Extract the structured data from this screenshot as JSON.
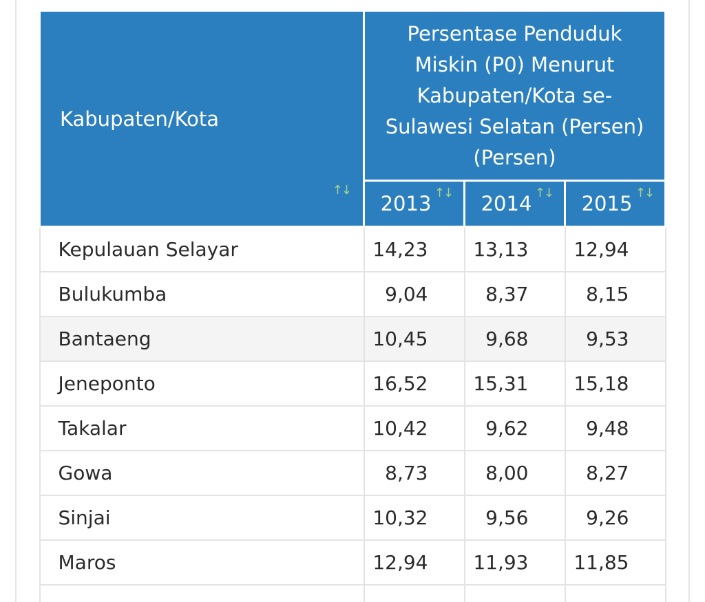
{
  "table": {
    "city_header": "Kabupaten/Kota",
    "group_header": "Persentase Penduduk Miskin (P0) Menurut Kabupaten/Kota se-Sulawesi Selatan (Persen) (Persen)",
    "group_header_lines": [
      "Persentase Penduduk",
      "Miskin (P0) Menurut",
      "Kabupaten/Kota se-",
      "Sulawesi Selatan (Persen)",
      "(Persen)"
    ],
    "sort_icon": "↑↓",
    "years": [
      "2013",
      "2014",
      "2015"
    ],
    "rows": [
      {
        "city": "Kepulauan Selayar",
        "v2013": "14,23",
        "v2014": "13,13",
        "v2015": "12,94"
      },
      {
        "city": "Bulukumba",
        "v2013": "9,04",
        "v2014": "8,37",
        "v2015": "8,15"
      },
      {
        "city": "Bantaeng",
        "v2013": "10,45",
        "v2014": "9,68",
        "v2015": "9,53"
      },
      {
        "city": "Jeneponto",
        "v2013": "16,52",
        "v2014": "15,31",
        "v2015": "15,18"
      },
      {
        "city": "Takalar",
        "v2013": "10,42",
        "v2014": "9,62",
        "v2015": "9,48"
      },
      {
        "city": "Gowa",
        "v2013": "8,73",
        "v2014": "8,00",
        "v2015": "8,27"
      },
      {
        "city": "Sinjai",
        "v2013": "10,32",
        "v2014": "9,56",
        "v2015": "9,26"
      },
      {
        "city": "Maros",
        "v2013": "12,94",
        "v2014": "11,93",
        "v2015": "11,85"
      },
      {
        "city": "",
        "v2013": "",
        "v2014": "",
        "v2015": ""
      }
    ]
  },
  "colors": {
    "header_bg": "#2b7fbe",
    "header_text": "#ffffff",
    "sort_icon": "#a9d18e",
    "alt_row_bg": "#f4f4f4"
  }
}
